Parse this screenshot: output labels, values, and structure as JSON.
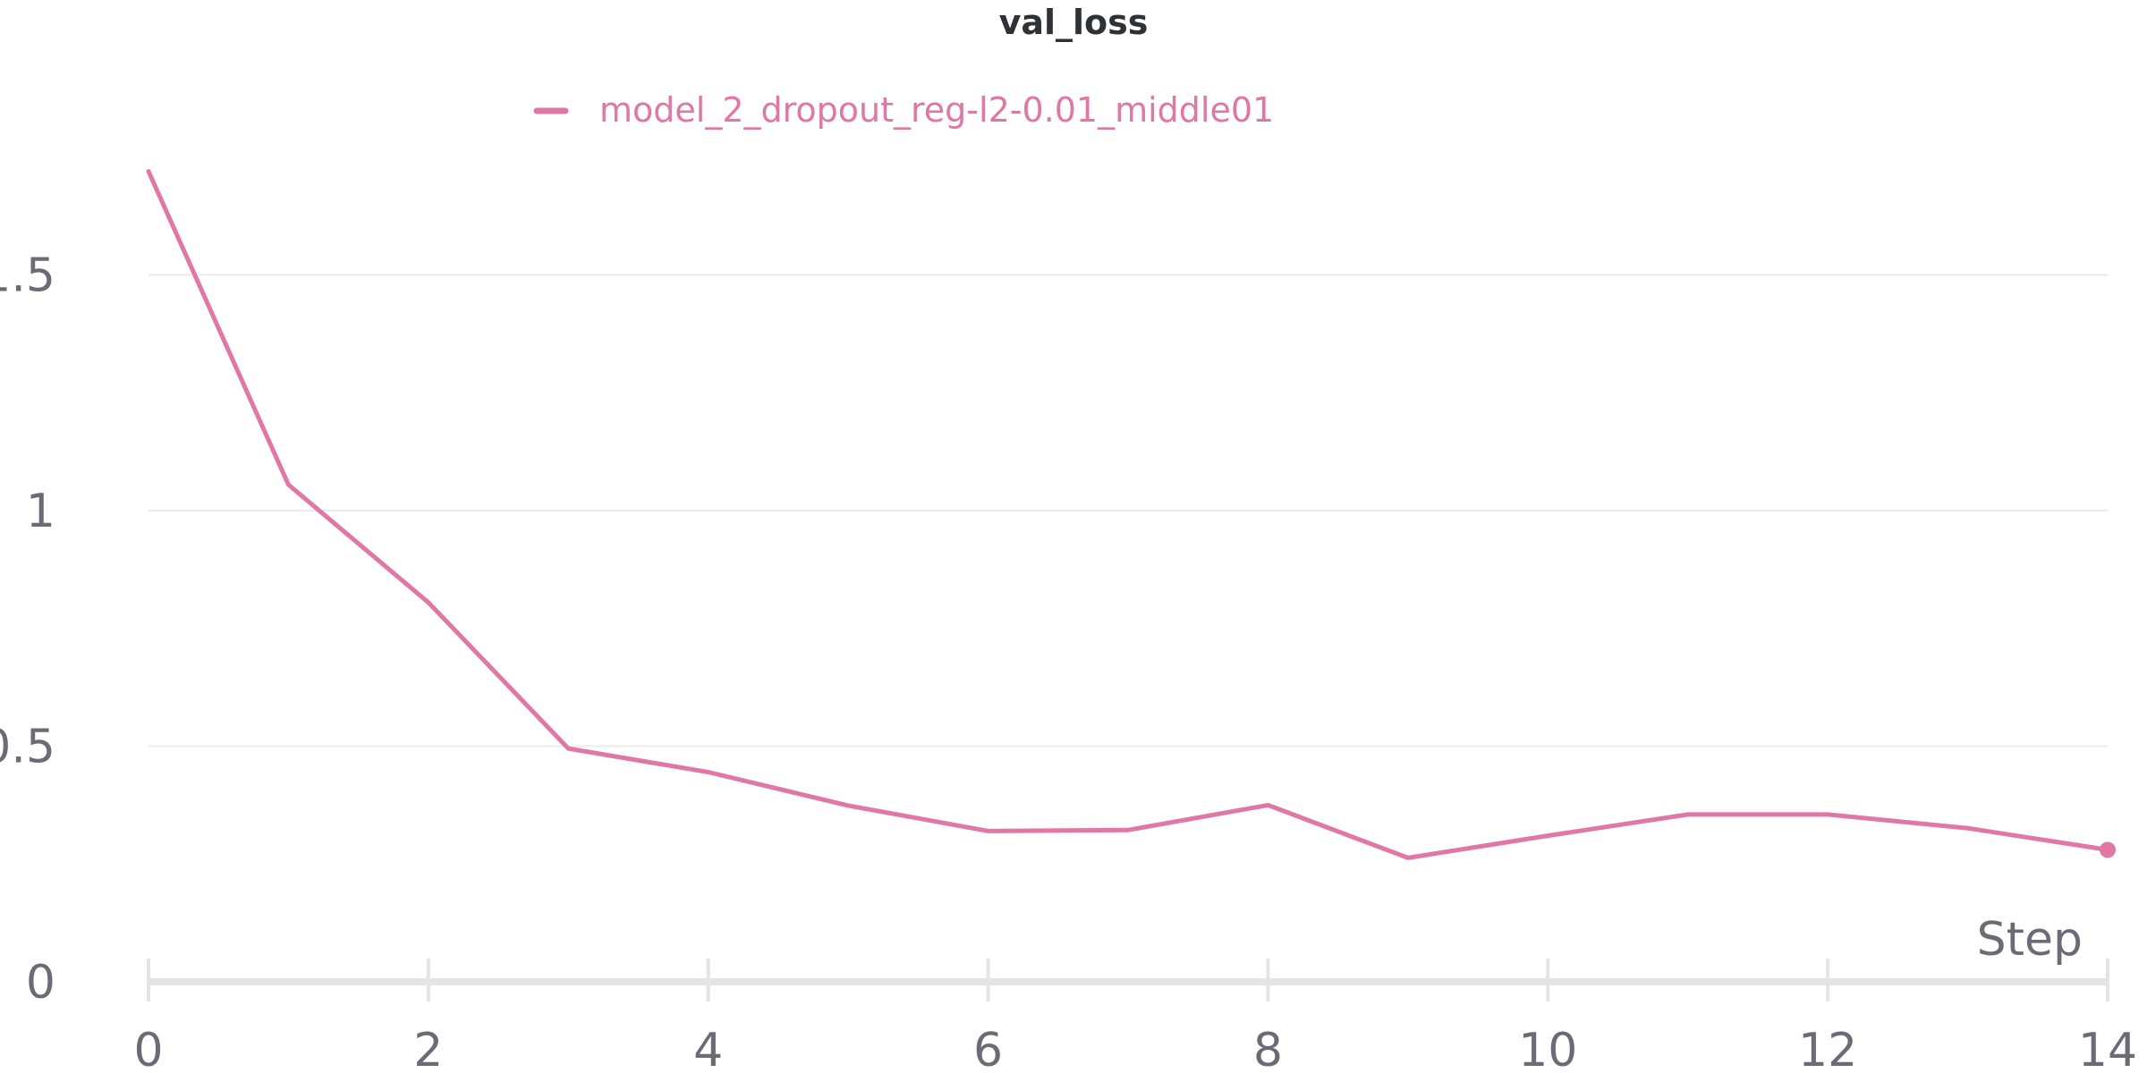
{
  "chart_data": {
    "type": "line",
    "title": "val_loss",
    "xlabel": "Step",
    "ylabel": "",
    "xlim": [
      0,
      14
    ],
    "ylim": [
      0,
      1.75
    ],
    "x_ticks": [
      0,
      2,
      4,
      6,
      8,
      10,
      12,
      14
    ],
    "x_tick_labels": [
      "0",
      "2",
      "4",
      "6",
      "8",
      "10",
      "12",
      "14"
    ],
    "y_ticks": [
      0,
      0.5,
      1,
      1.5
    ],
    "y_tick_labels": [
      "0",
      "0.5",
      "1",
      "1.5"
    ],
    "grid": true,
    "legend_position": "top",
    "series": [
      {
        "name": "model_2_dropout_reg-l2-0.01_middle01",
        "color": "#e077a4",
        "x": [
          0,
          1,
          2,
          3,
          4,
          5,
          6,
          7,
          8,
          9,
          10,
          11,
          12,
          13,
          14
        ],
        "values": [
          1.72,
          1.055,
          0.805,
          0.495,
          0.445,
          0.374,
          0.32,
          0.322,
          0.375,
          0.263,
          0.31,
          0.355,
          0.355,
          0.326,
          0.28
        ]
      }
    ]
  }
}
